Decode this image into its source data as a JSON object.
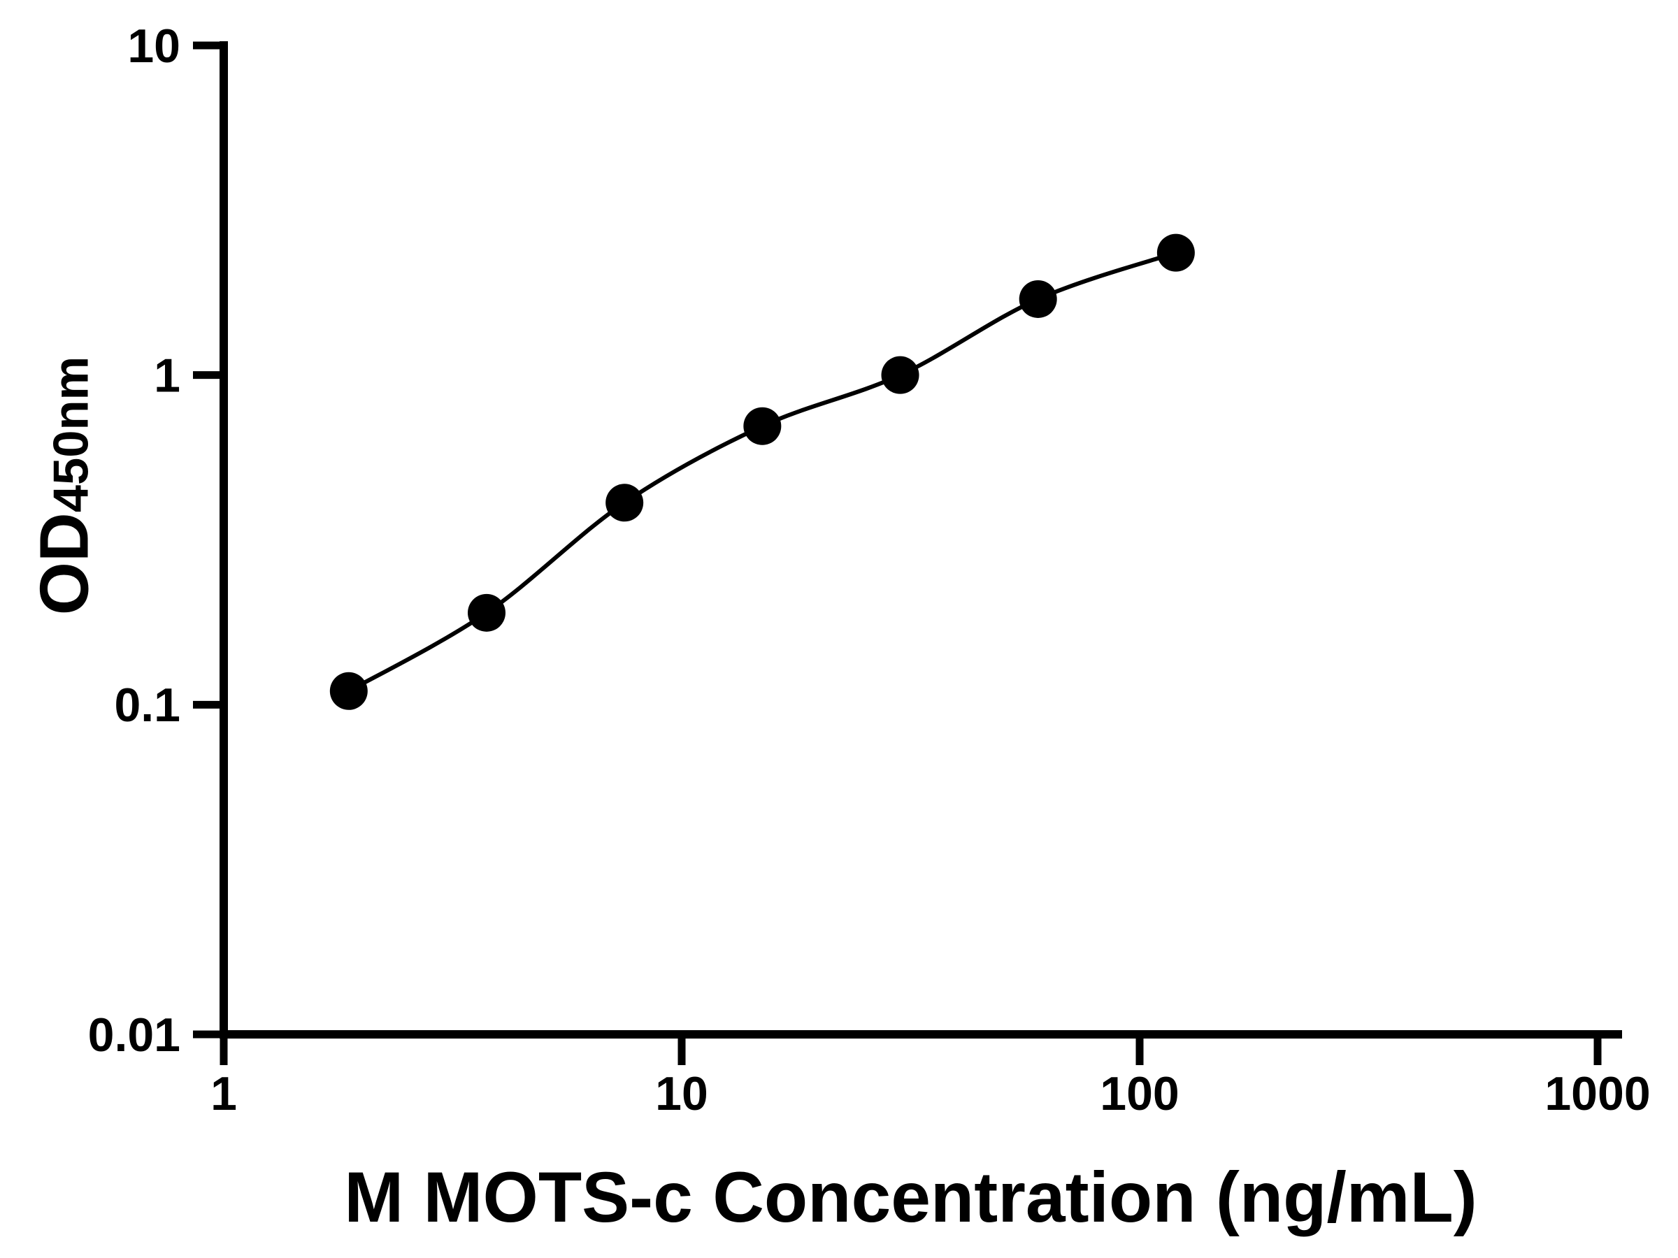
{
  "chart_data": {
    "type": "scatter",
    "series_name": "standard-curve",
    "x": [
      1.875,
      3.75,
      7.5,
      15,
      30,
      60,
      120
    ],
    "y": [
      0.11,
      0.19,
      0.41,
      0.7,
      1.0,
      1.7,
      2.35
    ],
    "xlabel": "M MOTS-c Concentration (ng/mL)",
    "ylabel_main": "OD",
    "ylabel_sub": "450nm",
    "x_scale": "log",
    "y_scale": "log",
    "xlim": [
      1,
      1000
    ],
    "ylim": [
      0.01,
      10
    ],
    "x_ticks": [
      1,
      10,
      100,
      1000
    ],
    "x_tick_labels": [
      "1",
      "10",
      "100",
      "1000"
    ],
    "y_ticks": [
      0.01,
      0.1,
      1,
      10
    ],
    "y_tick_labels": [
      "0.01",
      "0.1",
      "1",
      "10"
    ],
    "grid": false,
    "legend": false,
    "marker": "circle",
    "marker_color": "#000000",
    "line_color": "#000000",
    "axis_color": "#000000",
    "background": "#ffffff"
  }
}
